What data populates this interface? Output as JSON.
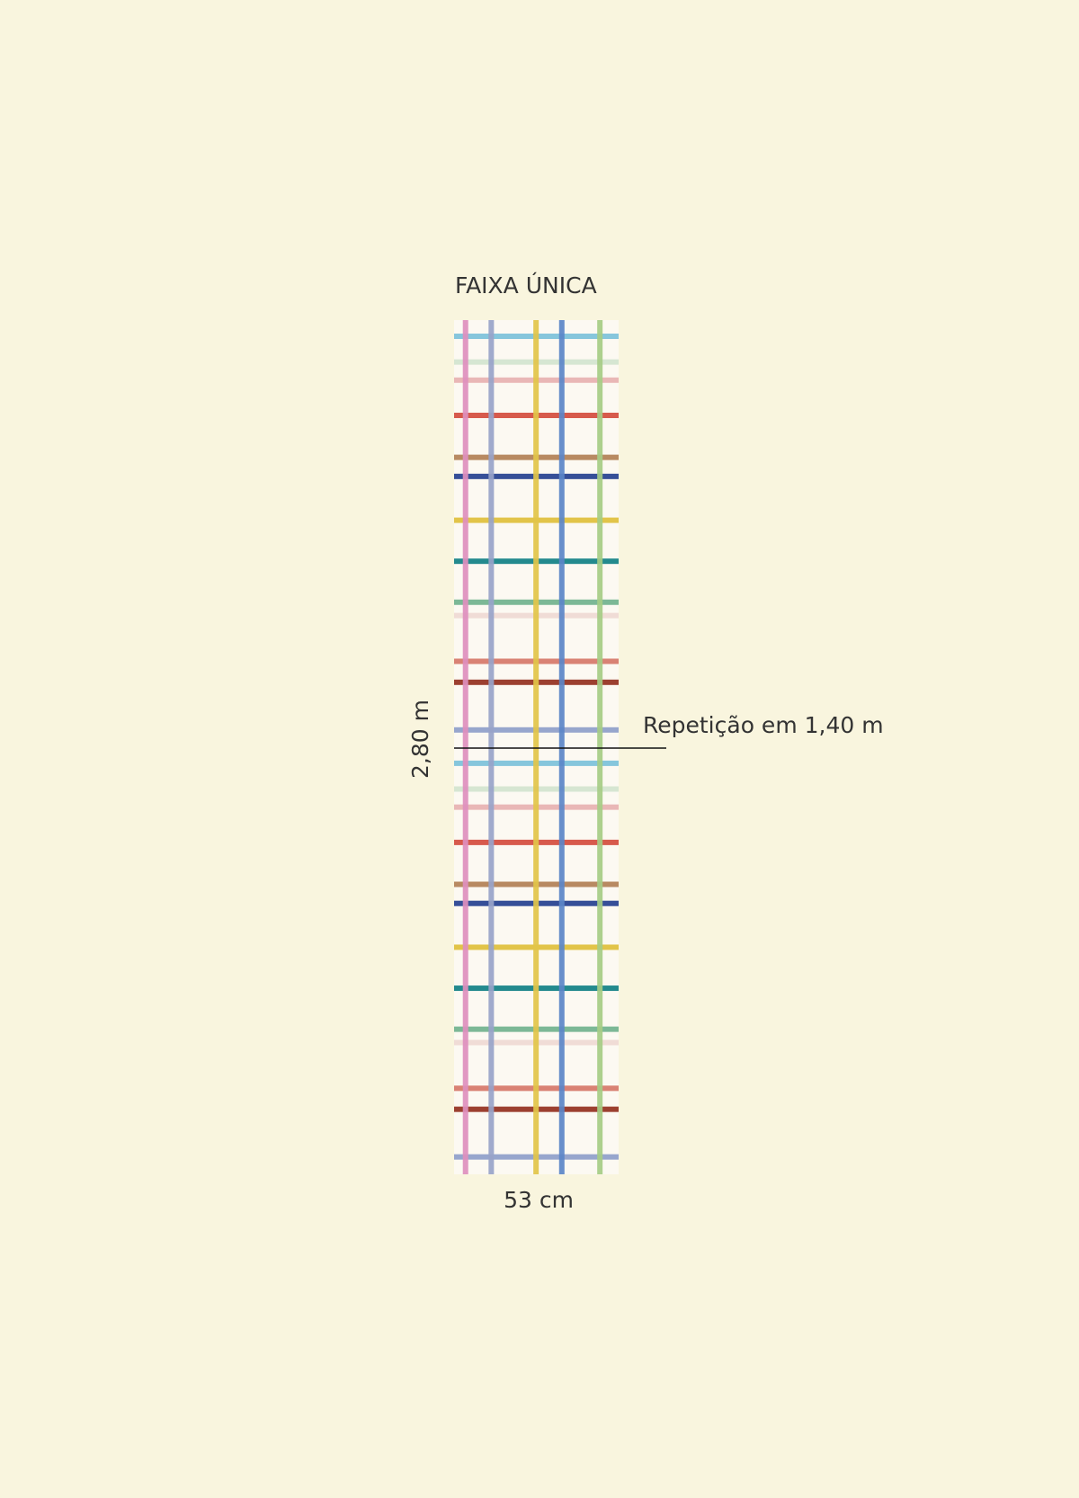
{
  "title": "FAIXA ÚNICA",
  "height_label": "2,80 m",
  "width_label": "53 cm",
  "repeat_label": "Repetição em 1,40 m"
}
